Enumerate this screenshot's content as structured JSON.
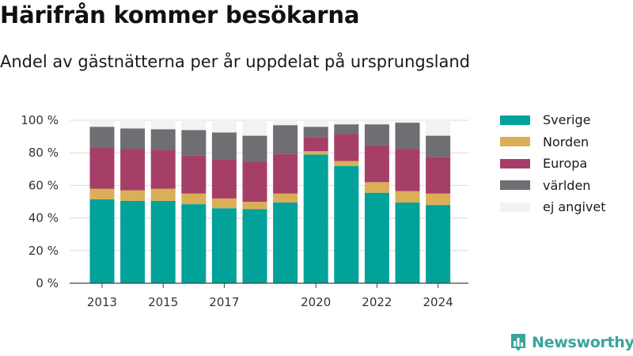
{
  "header": {
    "title": "Härifrån kommer besökarna",
    "subtitle": "Andel av gästnätterna per år uppdelat på ursprungsland"
  },
  "brand": {
    "logo_text": "Newsworthy",
    "logo_icon": "bar-chart-logo-icon",
    "color": "#3aa59a"
  },
  "chart_data": {
    "type": "bar",
    "stacked": true,
    "title": "",
    "xlabel": "",
    "ylabel": "",
    "x": [
      2013,
      2014,
      2015,
      2016,
      2017,
      2018,
      2019,
      2020,
      2021,
      2022,
      2023,
      2024
    ],
    "x_tick_labels": [
      "2013",
      "2015",
      "2017",
      "2020",
      "2022",
      "2024"
    ],
    "y_ticks": [
      0,
      20,
      40,
      60,
      80,
      100
    ],
    "y_tick_labels": [
      "0 %",
      "20 %",
      "40 %",
      "60 %",
      "80 %",
      "100 %"
    ],
    "ylim": [
      0,
      100
    ],
    "grid": true,
    "legend_position": "right",
    "series": [
      {
        "name": "Sverige",
        "color": "#00a29a",
        "values": [
          51.5,
          50.5,
          50.5,
          48.5,
          46,
          45.5,
          49.5,
          79,
          72,
          55.5,
          49.5,
          48
        ]
      },
      {
        "name": "Norden",
        "color": "#dbae58",
        "values": [
          6.5,
          6.5,
          7.5,
          6.5,
          6,
          4.5,
          5.5,
          2,
          3,
          6.5,
          7,
          7
        ]
      },
      {
        "name": "Europa",
        "color": "#a63f68",
        "values": [
          25,
          25.5,
          24,
          23.5,
          24,
          24.5,
          24.5,
          8.5,
          16.5,
          22.5,
          26,
          22.5
        ]
      },
      {
        "name": "världen",
        "color": "#6e6e73",
        "values": [
          13,
          12.5,
          12.5,
          15.5,
          16.5,
          16,
          17.5,
          6.5,
          6,
          13,
          16,
          13
        ]
      },
      {
        "name": "ej angivet",
        "color": "#f2f2f2",
        "values": [
          4,
          5,
          5.5,
          6,
          7.5,
          9.5,
          3,
          4,
          2.5,
          2.5,
          1.5,
          9.5
        ]
      }
    ]
  }
}
